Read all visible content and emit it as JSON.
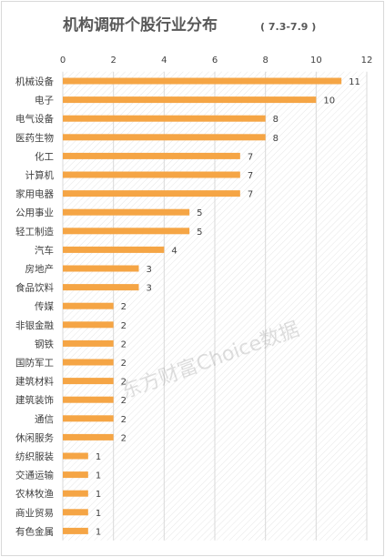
{
  "chart_data": {
    "type": "bar",
    "orientation": "horizontal",
    "title": "机构调研个股行业分布",
    "subtitle": "( 7.3-7.9 )",
    "xlabel": "",
    "ylabel": "",
    "xlim": [
      0,
      12
    ],
    "x_ticks": [
      0,
      2,
      4,
      6,
      8,
      10,
      12
    ],
    "x_axis_position": "top",
    "grid": "vertical lines with hatched plot background",
    "legend": "none",
    "bar_color": "#f5a545",
    "watermark": "东方财富Choice数据",
    "categories": [
      "机械设备",
      "电子",
      "电气设备",
      "医药生物",
      "化工",
      "计算机",
      "家用电器",
      "公用事业",
      "轻工制造",
      "汽车",
      "房地产",
      "食品饮料",
      "传媒",
      "非银金融",
      "钢铁",
      "国防军工",
      "建筑材料",
      "建筑装饰",
      "通信",
      "休闲服务",
      "纺织服装",
      "交通运输",
      "农林牧渔",
      "商业贸易",
      "有色金属"
    ],
    "values": [
      11,
      10,
      8,
      8,
      7,
      7,
      7,
      5,
      5,
      4,
      3,
      3,
      2,
      2,
      2,
      2,
      2,
      2,
      2,
      2,
      1,
      1,
      1,
      1,
      1
    ]
  }
}
